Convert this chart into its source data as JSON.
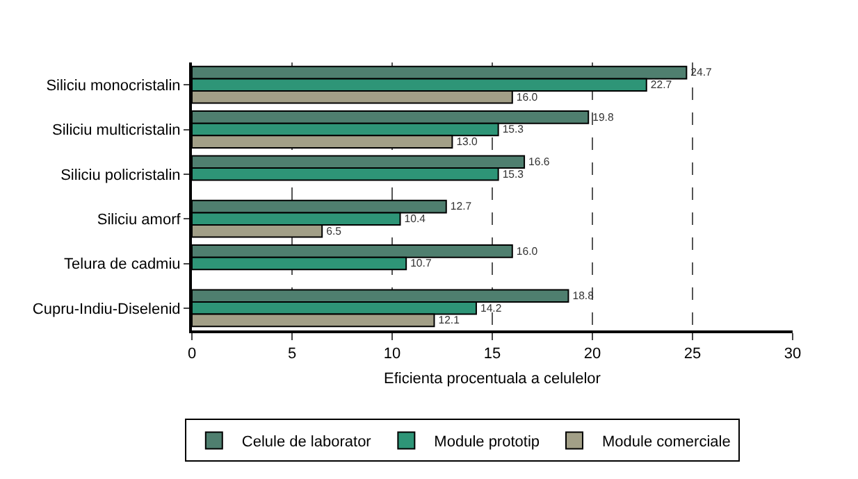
{
  "chart_data": {
    "type": "bar",
    "orientation": "horizontal",
    "xlabel": "Eficienta procentuala a celulelor",
    "categories": [
      "Siliciu monocristalin",
      "Siliciu multicristalin",
      "Siliciu policristalin",
      "Siliciu amorf",
      "Telura de cadmiu",
      "Cupru-Indiu-Diselenid"
    ],
    "series": [
      {
        "name": "Celule de laborator",
        "color": "#4f7f6f",
        "values": [
          24.7,
          19.8,
          16.6,
          12.7,
          16.0,
          18.8
        ],
        "value_labels": [
          "24.7",
          "19.8",
          "16.6",
          "12.7",
          "16.0",
          "18.8"
        ]
      },
      {
        "name": "Module prototip",
        "color": "#2e9577",
        "values": [
          22.7,
          15.3,
          15.3,
          10.4,
          10.7,
          14.2
        ],
        "value_labels": [
          "22.7",
          "15.3",
          "15.3",
          "10.4",
          "10.7",
          "14.2"
        ]
      },
      {
        "name": "Module comerciale",
        "color": "#a29f87",
        "values": [
          16.0,
          13.0,
          null,
          6.5,
          null,
          12.1
        ],
        "value_labels": [
          "16.0",
          "13.0",
          null,
          "6.5",
          null,
          "12.1"
        ]
      }
    ],
    "xlim": [
      0,
      30
    ],
    "xticks": [
      0,
      5,
      10,
      15,
      20,
      25,
      30
    ],
    "grid": "x",
    "legend": "bottom"
  }
}
